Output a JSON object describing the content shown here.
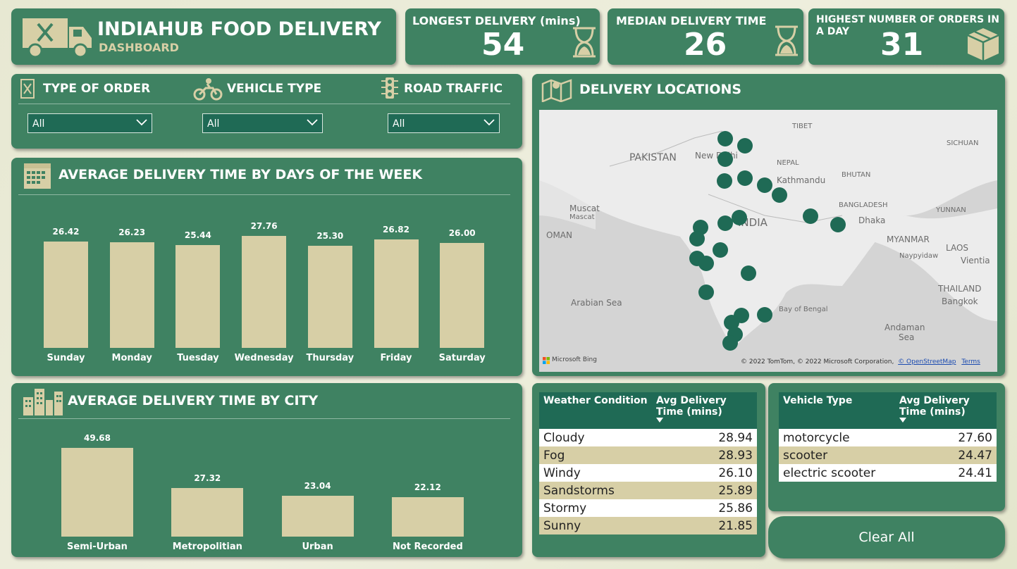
{
  "header": {
    "title": "INDIAHUB FOOD DELIVERY",
    "subtitle": "DASHBOARD"
  },
  "kpis": [
    {
      "title": "LONGEST DELIVERY (mins)",
      "value": "54",
      "icon": "hourglass-icon"
    },
    {
      "title": "MEDIAN DELIVERY TIME",
      "value": "26",
      "icon": "hourglass-icon"
    },
    {
      "title": "HIGHEST NUMBER OF ORDERS IN A DAY",
      "value": "31",
      "icon": "box-icon"
    }
  ],
  "slicers": [
    {
      "label": "TYPE OF ORDER",
      "value": "All",
      "icon": "menu-icon"
    },
    {
      "label": "VEHICLE TYPE",
      "value": "All",
      "icon": "motorbike-icon"
    },
    {
      "label": "ROAD TRAFFIC",
      "value": "All",
      "icon": "traffic-light-icon"
    }
  ],
  "map": {
    "title": "DELIVERY LOCATIONS",
    "labels": [
      "PAKISTAN",
      "New Delhi",
      "TIBET",
      "SICHUAN",
      "NEPAL",
      "Kathmandu",
      "BHUTAN",
      "BANGLADESH",
      "Dhaka",
      "YUNNAN",
      "INDIA",
      "Muscat",
      "Mascat",
      "OMAN",
      "MYANMAR",
      "LAOS",
      "Naypyidaw",
      "Vientia",
      "Arabian Sea",
      "THAILAND",
      "Bangkok",
      "Bay of Bengal",
      "Andaman",
      "Sea"
    ],
    "attribution": "© 2022 TomTom, © 2022 Microsoft Corporation,",
    "osm": "© OpenStreetMap",
    "terms": "Terms",
    "brand": "Microsoft Bing"
  },
  "chart_data": [
    {
      "type": "bar",
      "title": "AVERAGE DELIVERY TIME BY DAYS OF THE WEEK",
      "categories": [
        "Sunday",
        "Monday",
        "Tuesday",
        "Wednesday",
        "Thursday",
        "Friday",
        "Saturday"
      ],
      "values": [
        26.42,
        26.23,
        25.44,
        27.76,
        25.3,
        26.82,
        26.0
      ],
      "value_labels": [
        "26.42",
        "26.23",
        "25.44",
        "27.76",
        "25.30",
        "26.82",
        "26.00"
      ],
      "color": "#d7cfa6"
    },
    {
      "type": "bar",
      "title": "AVERAGE DELIVERY TIME BY CITY",
      "categories": [
        "Semi-Urban",
        "Metropolitian",
        "Urban",
        "Not Recorded"
      ],
      "values": [
        49.68,
        27.32,
        23.04,
        22.12
      ],
      "value_labels": [
        "49.68",
        "27.32",
        "23.04",
        "22.12"
      ],
      "color": "#d7cfa6"
    }
  ],
  "weather_table": {
    "headers": [
      "Weather Condition",
      "Avg Delivery Time (mins)"
    ],
    "rows": [
      [
        "Cloudy",
        "28.94"
      ],
      [
        "Fog",
        "28.93"
      ],
      [
        "Windy",
        "26.10"
      ],
      [
        "Sandstorms",
        "25.89"
      ],
      [
        "Stormy",
        "25.86"
      ],
      [
        "Sunny",
        "21.85"
      ]
    ]
  },
  "vehicle_table": {
    "headers": [
      "Vehicle Type",
      "Avg Delivery Time (mins)"
    ],
    "rows": [
      [
        "motorcycle",
        "27.60"
      ],
      [
        "scooter",
        "24.47"
      ],
      [
        "electric scooter",
        "24.41"
      ]
    ]
  },
  "clear_button": "Clear All",
  "colors": {
    "card": "#3f8262",
    "dark": "#1f6a55",
    "bar": "#d7cfa6",
    "background": "#e7e8d2"
  }
}
